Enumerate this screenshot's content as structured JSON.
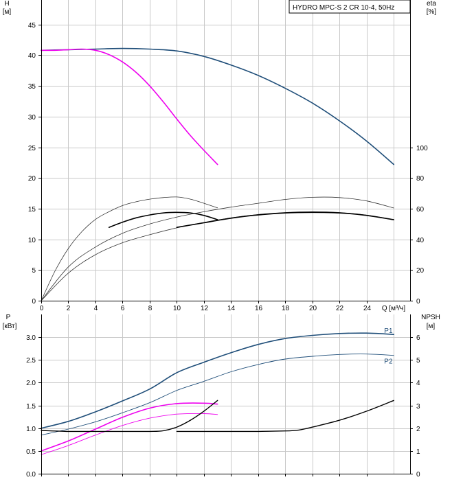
{
  "title": "HYDRO MPC-S 2 CR 10-4, 50Hz",
  "chart_data": [
    {
      "type": "line",
      "panel": "head-efficiency",
      "xlabel": "Q [м³/ч]",
      "ylabel_left": "H",
      "ylabel_left_unit": "[м]",
      "ylabel_right": "eta",
      "ylabel_right_unit": "[%]",
      "xlim": [
        0,
        27.2
      ],
      "ylim_left": [
        0,
        49
      ],
      "ylim_right": [
        0,
        196
      ],
      "x_ticks": [
        0,
        2,
        4,
        6,
        8,
        10,
        12,
        14,
        16,
        18,
        20,
        22,
        24
      ],
      "y_ticks_left": [
        0,
        5,
        10,
        15,
        20,
        25,
        30,
        35,
        40,
        45
      ],
      "y_ticks_right": [
        0,
        20,
        40,
        60,
        80,
        100
      ],
      "grid": true,
      "series": [
        {
          "axis": "left",
          "color": "#1f4e79",
          "width": 1.6,
          "x": [
            0,
            2,
            4,
            6,
            8,
            10,
            12,
            14,
            16,
            18,
            20,
            22,
            24,
            26
          ],
          "y": [
            40.8,
            40.9,
            41.0,
            41.1,
            41.0,
            40.7,
            39.8,
            38.4,
            36.7,
            34.6,
            32.2,
            29.3,
            26.0,
            22.2
          ]
        },
        {
          "axis": "left",
          "color": "#ee00ee",
          "width": 1.6,
          "x": [
            0,
            1,
            2,
            3,
            4,
            5,
            6,
            7,
            8,
            9,
            10,
            11,
            12,
            13
          ],
          "y": [
            40.8,
            40.8,
            40.9,
            41.0,
            40.8,
            40.1,
            38.9,
            37.2,
            35.0,
            32.4,
            29.6,
            26.9,
            24.5,
            22.2
          ]
        },
        {
          "axis": "right",
          "color": "#333333",
          "width": 0.8,
          "x": [
            0,
            1,
            2,
            3,
            4,
            5,
            6,
            7,
            8,
            9,
            10,
            11,
            12,
            13
          ],
          "y": [
            0,
            19,
            34,
            45,
            53,
            58,
            62,
            64.5,
            66.2,
            67.2,
            67.6,
            66.2,
            63.5,
            60.5
          ]
        },
        {
          "axis": "right",
          "color": "#000000",
          "width": 1.6,
          "x": [
            5,
            6,
            7,
            8,
            9,
            10,
            11,
            12,
            13
          ],
          "y": [
            47.8,
            51.2,
            54.0,
            55.9,
            57.2,
            57.6,
            57.2,
            55.6,
            52.8
          ]
        },
        {
          "axis": "right",
          "color": "#333333",
          "width": 0.8,
          "x": [
            0,
            2,
            4,
            6,
            8,
            10,
            12,
            14,
            16,
            18,
            20,
            22,
            24,
            26
          ],
          "y": [
            0,
            22,
            35,
            44,
            50,
            54.5,
            58,
            61,
            63.5,
            66,
            67.4,
            67.2,
            65,
            60.4
          ]
        },
        {
          "axis": "right",
          "color": "#333333",
          "width": 0.8,
          "x": [
            0,
            2,
            4,
            6,
            8,
            10,
            12,
            14,
            16,
            18,
            20,
            22,
            24,
            26
          ],
          "y": [
            0,
            18,
            30,
            37.8,
            43,
            47.5,
            51,
            54,
            56.2,
            57.5,
            58,
            57.5,
            55.8,
            52.8
          ]
        },
        {
          "axis": "right",
          "color": "#000000",
          "width": 1.6,
          "x": [
            10,
            12,
            14,
            16,
            18,
            20,
            22,
            24,
            26
          ],
          "y": [
            47.8,
            50.8,
            53.8,
            55.9,
            57.2,
            57.6,
            57.2,
            55.6,
            52.8
          ]
        }
      ]
    },
    {
      "type": "line",
      "panel": "power-npsh",
      "ylabel_left": "P",
      "ylabel_left_unit": "[кВт]",
      "ylabel_right": "NPSH",
      "ylabel_right_unit": "[м]",
      "xlim": [
        0,
        27.2
      ],
      "ylim_left": [
        0,
        3.5
      ],
      "ylim_right": [
        0,
        7
      ],
      "y_ticks_left": [
        0.0,
        0.5,
        1.0,
        1.5,
        2.0,
        2.5,
        3.0
      ],
      "y_ticks_right": [
        0,
        1,
        2,
        3,
        4,
        5,
        6
      ],
      "grid": true,
      "series": [
        {
          "name": "P1",
          "axis": "left",
          "color": "#1f4e79",
          "width": 1.6,
          "x": [
            0,
            2,
            4,
            6,
            8,
            10,
            12,
            14,
            16,
            18,
            20,
            22,
            24,
            26
          ],
          "y": [
            1.0,
            1.15,
            1.36,
            1.6,
            1.86,
            2.22,
            2.45,
            2.66,
            2.84,
            2.97,
            3.04,
            3.08,
            3.09,
            3.06
          ]
        },
        {
          "name": "P2",
          "axis": "left",
          "color": "#1f4e79",
          "width": 0.9,
          "x": [
            0,
            2,
            4,
            6,
            8,
            10,
            12,
            14,
            16,
            18,
            20,
            22,
            24,
            26
          ],
          "y": [
            0.85,
            0.98,
            1.14,
            1.34,
            1.56,
            1.83,
            2.03,
            2.24,
            2.4,
            2.52,
            2.58,
            2.62,
            2.63,
            2.6
          ]
        },
        {
          "axis": "left",
          "color": "#ee00ee",
          "width": 1.6,
          "x": [
            0,
            2,
            4,
            6,
            8,
            10,
            12,
            13
          ],
          "y": [
            0.5,
            0.72,
            0.98,
            1.24,
            1.44,
            1.54,
            1.55,
            1.53
          ]
        },
        {
          "axis": "left",
          "color": "#ee00ee",
          "width": 0.9,
          "x": [
            0,
            2,
            4,
            6,
            8,
            10,
            12,
            13
          ],
          "y": [
            0.42,
            0.62,
            0.85,
            1.06,
            1.22,
            1.31,
            1.32,
            1.3
          ]
        },
        {
          "axis": "right",
          "color": "#000000",
          "width": 1.4,
          "x": [
            0,
            2,
            4,
            6,
            8,
            9,
            10,
            11,
            12,
            13
          ],
          "y": [
            1.9,
            1.86,
            1.86,
            1.86,
            1.86,
            1.89,
            2.05,
            2.35,
            2.75,
            3.22
          ]
        },
        {
          "axis": "right",
          "color": "#000000",
          "width": 1.4,
          "x": [
            10,
            12,
            14,
            16,
            18,
            19,
            20,
            22,
            24,
            26
          ],
          "y": [
            1.86,
            1.86,
            1.86,
            1.86,
            1.88,
            1.92,
            2.05,
            2.35,
            2.75,
            3.22
          ]
        }
      ],
      "annotations": [
        {
          "text": "P1",
          "x": 25.6,
          "y": 3.15
        },
        {
          "text": "P2",
          "x": 25.6,
          "y": 2.48
        }
      ]
    }
  ]
}
